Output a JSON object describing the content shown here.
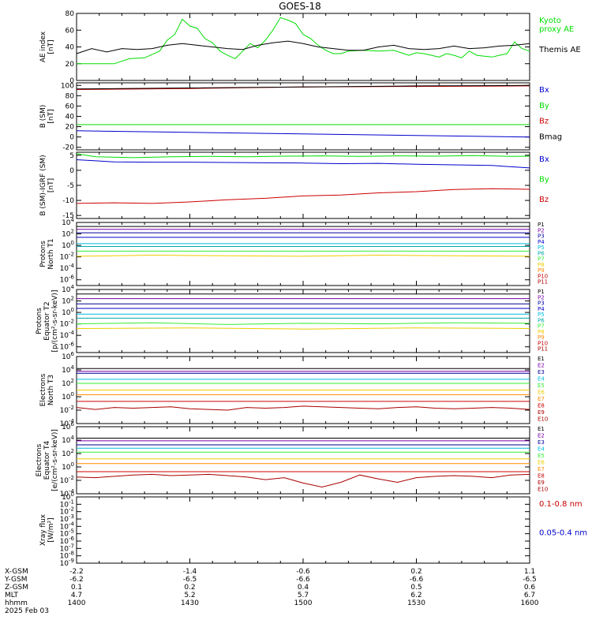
{
  "title": "GOES-18",
  "colors": {
    "black": "#000000",
    "green": "#00dd00",
    "blue": "#0000cc",
    "red": "#cc0000",
    "purple": "#7700aa",
    "navy": "#000099",
    "cyan": "#00bbdd",
    "teal": "#00aaaa",
    "lime": "#33ee33",
    "yellow": "#eecc00",
    "orange": "#ff8800",
    "darkred": "#aa0000"
  },
  "chart_data": [
    {
      "type": "line",
      "id": "ae",
      "ylabel": "AE index\n[nT]",
      "ylim": [
        0,
        80
      ],
      "yticks": [
        "0",
        "20",
        "40",
        "60",
        "80"
      ],
      "xlim": [
        0,
        120
      ],
      "series": [
        {
          "name": "Kyoto\nproxy AE",
          "color": "green",
          "x": [
            0,
            6,
            10,
            14,
            18,
            22,
            24,
            26,
            28,
            30,
            32,
            34,
            36,
            38,
            40,
            42,
            44,
            46,
            48,
            50,
            52,
            54,
            56,
            58,
            60,
            62,
            64,
            66,
            68,
            70,
            72,
            76,
            80,
            84,
            88,
            90,
            92,
            94,
            96,
            98,
            100,
            102,
            104,
            106,
            108,
            110,
            112,
            114,
            116,
            118,
            120
          ],
          "values": [
            20,
            20,
            20,
            26,
            27,
            35,
            48,
            55,
            73,
            65,
            62,
            50,
            45,
            35,
            30,
            26,
            35,
            44,
            39,
            48,
            60,
            75,
            72,
            68,
            55,
            50,
            42,
            36,
            32,
            32,
            35,
            36,
            35,
            36,
            30,
            33,
            32,
            30,
            28,
            32,
            30,
            27,
            35,
            30,
            29,
            28,
            30,
            32,
            46,
            38,
            35
          ]
        },
        {
          "name": "Themis AE",
          "color": "black",
          "x": [
            0,
            4,
            8,
            12,
            16,
            20,
            24,
            28,
            32,
            36,
            40,
            44,
            48,
            52,
            56,
            60,
            64,
            68,
            72,
            76,
            80,
            84,
            88,
            92,
            96,
            100,
            104,
            108,
            112,
            116,
            120
          ],
          "values": [
            32,
            38,
            34,
            38,
            37,
            38,
            42,
            44,
            42,
            40,
            38,
            37,
            42,
            45,
            47,
            44,
            40,
            38,
            36,
            36,
            40,
            42,
            38,
            37,
            38,
            41,
            38,
            39,
            41,
            42,
            44
          ]
        }
      ]
    },
    {
      "type": "line",
      "id": "bsm",
      "ylabel": "B (SM)\n[nT]",
      "ylim": [
        -25,
        105
      ],
      "yticks": [
        "-20",
        "0",
        "20",
        "40",
        "60",
        "80",
        "100"
      ],
      "xlim": [
        0,
        120
      ],
      "series": [
        {
          "name": "Bx",
          "color": "blue",
          "x": [
            0,
            120
          ],
          "values": [
            12,
            0
          ]
        },
        {
          "name": "By",
          "color": "green",
          "x": [
            0,
            120
          ],
          "values": [
            24,
            24
          ]
        },
        {
          "name": "Bz",
          "color": "red",
          "x": [
            0,
            30,
            60,
            90,
            120
          ],
          "values": [
            92,
            94,
            97,
            98,
            99
          ]
        },
        {
          "name": "Bmag",
          "color": "black",
          "x": [
            0,
            30,
            60,
            90,
            120
          ],
          "values": [
            93,
            95,
            97,
            99,
            100
          ]
        }
      ]
    },
    {
      "type": "line",
      "id": "bigrf",
      "ylabel": "B (SM)-IGRF (SM)\n[nT]",
      "ylim": [
        -16,
        6
      ],
      "yticks": [
        "-15",
        "-10",
        "-5",
        "0",
        "5"
      ],
      "xlim": [
        0,
        120
      ],
      "series": [
        {
          "name": "Bx",
          "color": "blue",
          "x": [
            0,
            10,
            20,
            30,
            40,
            50,
            60,
            70,
            80,
            90,
            100,
            110,
            120
          ],
          "values": [
            3.5,
            2.8,
            2.7,
            2.7,
            2.6,
            2.5,
            2.4,
            2.2,
            2.3,
            2.0,
            1.8,
            1.6,
            0.8
          ]
        },
        {
          "name": "By",
          "color": "green",
          "x": [
            0,
            5,
            15,
            25,
            35,
            45,
            55,
            65,
            75,
            85,
            95,
            105,
            115,
            120
          ],
          "values": [
            5.5,
            4.5,
            4.2,
            4.5,
            4.6,
            4.5,
            4.7,
            4.8,
            4.6,
            4.8,
            4.7,
            4.9,
            4.6,
            4.7
          ]
        },
        {
          "name": "Bz",
          "color": "red",
          "x": [
            0,
            10,
            20,
            30,
            40,
            50,
            60,
            70,
            80,
            90,
            100,
            110,
            120
          ],
          "values": [
            -11,
            -10.8,
            -11,
            -10.5,
            -9.8,
            -9.3,
            -8.5,
            -8.2,
            -7.5,
            -7.1,
            -6.4,
            -6.1,
            -6.3
          ]
        }
      ]
    },
    {
      "type": "line",
      "id": "pn",
      "ylabel": "Protons\nNorth T1",
      "log": true,
      "ylim": [
        -7,
        4
      ],
      "yticks": [
        "10^4",
        "10^2",
        "10^0",
        "10^-2",
        "10^-4",
        "10^-6"
      ],
      "xlim": [
        0,
        120
      ],
      "series": [
        {
          "name": "P1",
          "color": "black",
          "x": [
            0,
            120
          ],
          "values": [
            3.3,
            3.3
          ]
        },
        {
          "name": "P2",
          "color": "purple",
          "x": [
            0,
            120
          ],
          "values": [
            2.8,
            2.8
          ]
        },
        {
          "name": "P3",
          "color": "navy",
          "x": [
            0,
            120
          ],
          "values": [
            2.2,
            2.2
          ]
        },
        {
          "name": "P4",
          "color": "blue",
          "x": [
            0,
            120
          ],
          "values": [
            1.4,
            1.4
          ]
        },
        {
          "name": "P5",
          "color": "cyan",
          "x": [
            0,
            120
          ],
          "values": [
            0.3,
            0.3
          ]
        },
        {
          "name": "P6",
          "color": "teal",
          "x": [
            0,
            120
          ],
          "values": [
            -0.2,
            -0.2
          ]
        },
        {
          "name": "P7",
          "color": "lime",
          "x": [
            0,
            120
          ],
          "values": [
            -1.0,
            -1.0
          ]
        },
        {
          "name": "P8",
          "color": "yellow",
          "x": [
            0,
            20,
            40,
            60,
            80,
            100,
            120
          ],
          "values": [
            -1.9,
            -1.7,
            -1.8,
            -1.9,
            -1.7,
            -1.8,
            -1.9
          ]
        },
        {
          "name": "P9",
          "color": "orange",
          "x": [],
          "values": []
        },
        {
          "name": "P10",
          "color": "red",
          "x": [],
          "values": []
        },
        {
          "name": "P11",
          "color": "darkred",
          "x": [],
          "values": []
        }
      ]
    },
    {
      "type": "line",
      "id": "pe",
      "ylabel": "Protons\nEquator T2\n[p/(cm²-s-sr-keV)]",
      "log": true,
      "ylim": [
        -7,
        4
      ],
      "yticks": [
        "10^4",
        "10^2",
        "10^0",
        "10^-2",
        "10^-4",
        "10^-6"
      ],
      "xlim": [
        0,
        120
      ],
      "series": [
        {
          "name": "P1",
          "color": "black",
          "x": [
            0,
            120
          ],
          "values": [
            3.2,
            3.2
          ]
        },
        {
          "name": "P2",
          "color": "purple",
          "x": [
            0,
            120
          ],
          "values": [
            2.4,
            2.4
          ]
        },
        {
          "name": "P3",
          "color": "navy",
          "x": [
            0,
            120
          ],
          "values": [
            1.5,
            1.5
          ]
        },
        {
          "name": "P4",
          "color": "blue",
          "x": [
            0,
            120
          ],
          "values": [
            0.7,
            0.7
          ]
        },
        {
          "name": "P5",
          "color": "cyan",
          "x": [
            0,
            120
          ],
          "values": [
            -0.3,
            -0.3
          ]
        },
        {
          "name": "P6",
          "color": "teal",
          "x": [
            0,
            120
          ],
          "values": [
            -1.0,
            -1.0
          ]
        },
        {
          "name": "P7",
          "color": "lime",
          "x": [
            0,
            20,
            40,
            60,
            80,
            100,
            120
          ],
          "values": [
            -2.0,
            -1.8,
            -2.1,
            -1.9,
            -2.0,
            -1.8,
            -1.9
          ]
        },
        {
          "name": "P8",
          "color": "yellow",
          "x": [
            0,
            30,
            60,
            90,
            120
          ],
          "values": [
            -2.8,
            -2.7,
            -2.9,
            -2.7,
            -2.8
          ]
        },
        {
          "name": "P9",
          "color": "orange",
          "x": [],
          "values": []
        },
        {
          "name": "P10",
          "color": "red",
          "x": [],
          "values": []
        },
        {
          "name": "P11",
          "color": "darkred",
          "x": [],
          "values": []
        }
      ]
    },
    {
      "type": "line",
      "id": "en",
      "ylabel": "Electrons\nNorth T3",
      "log": true,
      "ylim": [
        -4,
        6
      ],
      "yticks": [
        "10^6",
        "10^4",
        "10^2",
        "10^0",
        "10^-2",
        "10^-4"
      ],
      "xlim": [
        0,
        120
      ],
      "series": [
        {
          "name": "E1",
          "color": "black",
          "x": [
            0,
            120
          ],
          "values": [
            4.2,
            4.2
          ]
        },
        {
          "name": "E2",
          "color": "purple",
          "x": [
            0,
            120
          ],
          "values": [
            3.8,
            3.8
          ]
        },
        {
          "name": "E3",
          "color": "navy",
          "x": [
            0,
            120
          ],
          "values": [
            3.5,
            3.5
          ]
        },
        {
          "name": "E4",
          "color": "cyan",
          "x": [
            0,
            120
          ],
          "values": [
            2.6,
            2.6
          ]
        },
        {
          "name": "E5",
          "color": "lime",
          "x": [
            0,
            120
          ],
          "values": [
            2.0,
            2.0
          ]
        },
        {
          "name": "E6",
          "color": "yellow",
          "x": [
            0,
            120
          ],
          "values": [
            1.0,
            1.0
          ]
        },
        {
          "name": "E7",
          "color": "orange",
          "x": [
            0,
            120
          ],
          "values": [
            0.3,
            0.3
          ]
        },
        {
          "name": "E8",
          "color": "red",
          "x": [
            0,
            120
          ],
          "values": [
            -0.7,
            -0.7
          ]
        },
        {
          "name": "E9",
          "color": "darkred",
          "x": [
            0,
            5,
            10,
            15,
            20,
            25,
            30,
            35,
            40,
            45,
            50,
            55,
            60,
            65,
            70,
            75,
            80,
            85,
            90,
            95,
            100,
            105,
            110,
            115,
            120
          ],
          "values": [
            -1.6,
            -1.9,
            -1.6,
            -1.7,
            -1.6,
            -1.5,
            -1.8,
            -1.9,
            -2.0,
            -1.6,
            -1.7,
            -1.6,
            -1.4,
            -1.5,
            -1.6,
            -1.7,
            -1.8,
            -1.6,
            -1.5,
            -1.7,
            -1.8,
            -1.7,
            -1.6,
            -1.7,
            -1.9
          ]
        },
        {
          "name": "E10",
          "color": "darkred",
          "x": [],
          "values": []
        }
      ]
    },
    {
      "type": "line",
      "id": "ee",
      "ylabel": "Electrons\nEquator T4\n[e/(cm²-s-sr-keV)]",
      "log": true,
      "ylim": [
        -4,
        6
      ],
      "yticks": [
        "10^6",
        "10^4",
        "10^2",
        "10^0",
        "10^-2",
        "10^-4"
      ],
      "xlim": [
        0,
        120
      ],
      "series": [
        {
          "name": "E1",
          "color": "black",
          "x": [
            0,
            120
          ],
          "values": [
            4.3,
            4.3
          ]
        },
        {
          "name": "E2",
          "color": "purple",
          "x": [
            0,
            120
          ],
          "values": [
            3.9,
            3.9
          ]
        },
        {
          "name": "E3",
          "color": "navy",
          "x": [
            0,
            120
          ],
          "values": [
            3.3,
            3.3
          ]
        },
        {
          "name": "E4",
          "color": "cyan",
          "x": [
            0,
            120
          ],
          "values": [
            2.8,
            2.8
          ]
        },
        {
          "name": "E5",
          "color": "lime",
          "x": [
            0,
            120
          ],
          "values": [
            2.2,
            2.2
          ]
        },
        {
          "name": "E6",
          "color": "yellow",
          "x": [
            0,
            120
          ],
          "values": [
            1.2,
            1.2
          ]
        },
        {
          "name": "E7",
          "color": "orange",
          "x": [
            0,
            120
          ],
          "values": [
            0.5,
            0.5
          ]
        },
        {
          "name": "E8",
          "color": "red",
          "x": [
            0,
            120
          ],
          "values": [
            -0.7,
            -0.7
          ]
        },
        {
          "name": "E9",
          "color": "darkred",
          "x": [
            0,
            5,
            10,
            15,
            20,
            25,
            30,
            35,
            40,
            45,
            50,
            55,
            60,
            65,
            70,
            75,
            80,
            85,
            90,
            95,
            100,
            105,
            110,
            115,
            120
          ],
          "values": [
            -1.5,
            -1.6,
            -1.4,
            -1.2,
            -1.1,
            -1.3,
            -1.2,
            -1.1,
            -1.3,
            -1.5,
            -1.9,
            -1.6,
            -2.4,
            -3.0,
            -2.3,
            -1.2,
            -1.8,
            -2.3,
            -1.6,
            -1.4,
            -1.3,
            -1.4,
            -1.6,
            -1.2,
            -1.1
          ]
        },
        {
          "name": "E10",
          "color": "darkred",
          "x": [],
          "values": []
        }
      ]
    },
    {
      "type": "line",
      "id": "xray",
      "ylabel": "Xray flux\n[W/m²]",
      "log": true,
      "ylim": [
        -9,
        0
      ],
      "yticks": [
        "10^0",
        "10^-1",
        "10^-2",
        "10^-3",
        "10^-4",
        "10^-5",
        "10^-6",
        "10^-7",
        "10^-8",
        "10^-9"
      ],
      "xlim": [
        0,
        120
      ],
      "series": [
        {
          "name": "0.1-0.8 nm",
          "color": "red",
          "x": [],
          "values": []
        },
        {
          "name": "0.05-0.4 nm",
          "color": "blue",
          "x": [],
          "values": []
        }
      ]
    }
  ],
  "x_axis": {
    "rows": [
      {
        "label": "X-GSM",
        "values": [
          "-2.2",
          "-1.4",
          "-0.6",
          "0.2",
          "1.1"
        ]
      },
      {
        "label": "Y-GSM",
        "values": [
          "-6.2",
          "-6.5",
          "-6.6",
          "-6.6",
          "-6.5"
        ]
      },
      {
        "label": "Z-GSM",
        "values": [
          "0.1",
          "0.2",
          "0.4",
          "0.5",
          "0.6"
        ]
      },
      {
        "label": "MLT",
        "values": [
          "4.7",
          "5.2",
          "5.7",
          "6.2",
          "6.7"
        ]
      },
      {
        "label": "hhmm",
        "values": [
          "1400",
          "1430",
          "1500",
          "1530",
          "1600"
        ]
      }
    ],
    "date": "2025 Feb 03",
    "tick_positions": [
      0,
      30,
      60,
      90,
      120
    ]
  }
}
